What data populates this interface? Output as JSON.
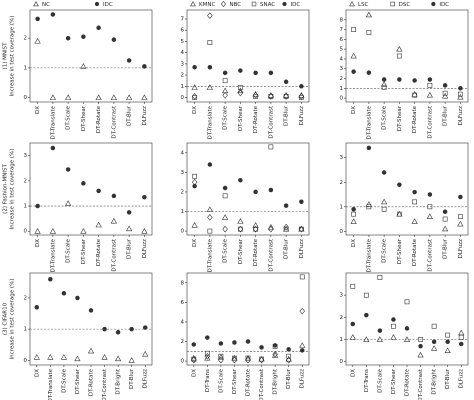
{
  "chart_data": [
    {
      "type": "scatter",
      "panel_label": "(1) MNIST",
      "ylabel": "Increase in test coverage (%)",
      "legend": "top",
      "categories": [
        "DX",
        "DT-Translate",
        "DT-Scale",
        "DT-Shear",
        "DT-Rotate",
        "DT-Contrast",
        "DT-Blur",
        "DLFuzz"
      ],
      "series": [
        {
          "name": "NC",
          "marker": "triangle",
          "color": "#333333",
          "values": [
            1.9,
            0,
            0,
            1.05,
            0,
            0,
            0,
            0
          ]
        },
        {
          "name": "IDC",
          "marker": "circle",
          "color": "#333333",
          "values": [
            2.65,
            2.8,
            2.0,
            2.05,
            2.35,
            1.95,
            1.25,
            1.05
          ]
        }
      ],
      "ylim": [
        -0.15,
        2.95
      ],
      "yticks": [
        0,
        1,
        2
      ],
      "hline": 1
    },
    {
      "type": "scatter",
      "legend": "top",
      "categories": [
        "DX",
        "DT-Translate",
        "DT-Scale",
        "DT-Shear",
        "DT-Rotate",
        "DT-Contrast",
        "DT-Blur",
        "DLFuzz"
      ],
      "series": [
        {
          "name": "KMNC",
          "marker": "triangle",
          "color": "#333333",
          "values": [
            0.9,
            0.9,
            0.6,
            0.6,
            0.3,
            0.2,
            0.2,
            0.2
          ]
        },
        {
          "name": "NBC",
          "marker": "diamond",
          "color": "#333333",
          "values": [
            0.1,
            7.3,
            0.2,
            0.4,
            0.2,
            0.1,
            0.1,
            0.1
          ]
        },
        {
          "name": "SNAC",
          "marker": "square",
          "color": "#333333",
          "values": [
            0,
            4.9,
            1.5,
            0.9,
            0.1,
            0.1,
            0.1,
            0
          ]
        },
        {
          "name": "IDC",
          "marker": "circle",
          "color": "#333333",
          "values": [
            2.7,
            2.7,
            2.2,
            2.4,
            2.2,
            2.2,
            1.4,
            1.0
          ]
        }
      ],
      "ylim": [
        -0.4,
        7.8
      ],
      "yticks": [
        0,
        1,
        2,
        3,
        4,
        5,
        6,
        7
      ],
      "hline": 1
    },
    {
      "type": "scatter",
      "legend": "top",
      "categories": [
        "DX",
        "DT-Translate",
        "DT-Scale",
        "DT-Shear",
        "DT-Rotate",
        "DT-Contrast",
        "DT-Blur",
        "DLFuzz"
      ],
      "series": [
        {
          "name": "LSC",
          "marker": "triangle",
          "color": "#333333",
          "values": [
            4.3,
            8.5,
            1.4,
            5.0,
            0.4,
            0.3,
            0.2,
            0.1
          ]
        },
        {
          "name": "DSC",
          "marker": "square",
          "color": "#333333",
          "values": [
            7.0,
            6.7,
            1.1,
            4.3,
            0.3,
            1.3,
            0.5,
            0.4
          ]
        },
        {
          "name": "IDC",
          "marker": "circle",
          "color": "#333333",
          "values": [
            2.7,
            2.6,
            1.9,
            1.9,
            1.8,
            1.9,
            1.3,
            1.0
          ]
        }
      ],
      "ylim": [
        -0.4,
        9.0
      ],
      "yticks": [
        0,
        1,
        2,
        3,
        4,
        5,
        6,
        7,
        8
      ],
      "hline": 1
    },
    {
      "type": "scatter",
      "panel_label": "(2) Fashion-MNIST",
      "ylabel": "Increase in test coverage (%)",
      "categories": [
        "DX",
        "DT-Translate",
        "DT-Scale",
        "DT-Shear",
        "DT-Rotate",
        "DT-Contrast",
        "DT-Blur",
        "DLFuzz"
      ],
      "series": [
        {
          "name": "NC",
          "marker": "triangle",
          "color": "#333333",
          "values": [
            0,
            0,
            1.1,
            0,
            0.25,
            0.4,
            0.1,
            0
          ]
        },
        {
          "name": "IDC",
          "marker": "circle",
          "color": "#333333",
          "values": [
            1.0,
            3.3,
            2.45,
            1.9,
            1.6,
            1.4,
            0.75,
            1.35
          ]
        }
      ],
      "ylim": [
        -0.15,
        3.5
      ],
      "yticks": [
        0,
        1,
        2,
        3
      ],
      "hline": 1
    },
    {
      "type": "scatter",
      "categories": [
        "DX",
        "DT-Translate",
        "DT-Scale",
        "DT-Shear",
        "DT-Rotate",
        "DT-Contrast",
        "DT-Blur",
        "DLFuzz"
      ],
      "series": [
        {
          "name": "KMNC",
          "marker": "triangle",
          "color": "#333333",
          "values": [
            0.3,
            1.1,
            0.7,
            0.5,
            0.3,
            0.2,
            0.1,
            0.1
          ]
        },
        {
          "name": "NBC",
          "marker": "diamond",
          "color": "#333333",
          "values": [
            2.5,
            0.7,
            0.1,
            0.1,
            0.1,
            0.1,
            0.2,
            0.1
          ]
        },
        {
          "name": "SNAC",
          "marker": "square",
          "color": "#333333",
          "values": [
            2.8,
            0,
            1.8,
            0.1,
            0.1,
            4.3,
            0.1,
            0.1
          ]
        },
        {
          "name": "IDC",
          "marker": "circle",
          "color": "#333333",
          "values": [
            2.3,
            3.4,
            2.2,
            2.6,
            2.0,
            2.1,
            1.3,
            1.5
          ]
        }
      ],
      "ylim": [
        -0.2,
        4.5
      ],
      "yticks": [
        0,
        1,
        2,
        3,
        4
      ],
      "hline": 1
    },
    {
      "type": "scatter",
      "categories": [
        "DX",
        "DT-Translate",
        "DT-Scale",
        "DT-Shear",
        "DT-Rotate",
        "DT-Contrast",
        "DT-Blur",
        "DLFuzz"
      ],
      "series": [
        {
          "name": "LSC",
          "marker": "triangle",
          "color": "#333333",
          "values": [
            0.4,
            1.1,
            1.2,
            0.7,
            0.4,
            0.6,
            0.1,
            0.3
          ]
        },
        {
          "name": "DSC",
          "marker": "square",
          "color": "#333333",
          "values": [
            0.7,
            1.0,
            0.9,
            0.7,
            1.2,
            1.0,
            0.5,
            0.6
          ]
        },
        {
          "name": "IDC",
          "marker": "circle",
          "color": "#333333",
          "values": [
            0.9,
            3.4,
            2.4,
            1.9,
            1.6,
            1.5,
            0.8,
            1.4
          ]
        }
      ],
      "ylim": [
        -0.15,
        3.6
      ],
      "yticks": [
        0,
        1,
        2,
        3
      ],
      "hline": 1
    },
    {
      "type": "scatter",
      "panel_label": "(3) CIFAR10",
      "ylabel": "Increase in test coverage (%)",
      "categories": [
        "DX",
        "DT-Translate",
        "DT-Scale",
        "DT-Shear",
        "DT-Rotate",
        "DT-Contrast",
        "DT-Bright",
        "DT-Blur",
        "DLFuzz"
      ],
      "series": [
        {
          "name": "NC",
          "marker": "triangle",
          "color": "#333333",
          "values": [
            0.1,
            0.1,
            0.1,
            0.05,
            0.3,
            0.1,
            0.05,
            0.0,
            0.2
          ]
        },
        {
          "name": "IDC",
          "marker": "circle",
          "color": "#333333",
          "values": [
            1.7,
            2.6,
            2.15,
            2.0,
            1.6,
            1.0,
            0.9,
            1.0,
            1.05
          ]
        }
      ],
      "ylim": [
        -0.15,
        2.8
      ],
      "yticks": [
        0,
        1,
        2
      ],
      "hline": 1
    },
    {
      "type": "scatter",
      "categories": [
        "DX",
        "DT-Trans",
        "DT-Scale",
        "DT-Shear",
        "DT-Rotate",
        "DT-Contrast",
        "DT-Bright",
        "DT-Blur",
        "DLFuzz"
      ],
      "series": [
        {
          "name": "KMNC",
          "marker": "triangle",
          "color": "#333333",
          "values": [
            0.3,
            0.3,
            0.4,
            0.3,
            0.3,
            0.2,
            0.6,
            0.2,
            1.6
          ]
        },
        {
          "name": "NBC",
          "marker": "diamond",
          "color": "#333333",
          "values": [
            0.1,
            0.5,
            0.1,
            0.1,
            0.1,
            0.1,
            0.7,
            0.1,
            5.1
          ]
        },
        {
          "name": "SNAC",
          "marker": "square",
          "color": "#333333",
          "values": [
            0.2,
            0.8,
            0.5,
            0.3,
            0.3,
            0.2,
            1.5,
            0.5,
            8.6
          ]
        },
        {
          "name": "IDC",
          "marker": "circle",
          "color": "#333333",
          "values": [
            1.7,
            2.4,
            1.8,
            1.9,
            2.0,
            1.4,
            1.6,
            1.2,
            1.1
          ]
        }
      ],
      "ylim": [
        -0.4,
        9.0
      ],
      "yticks": [
        0,
        2,
        4,
        6,
        8
      ],
      "hline": 1
    },
    {
      "type": "scatter",
      "categories": [
        "DX",
        "DT-Trans",
        "DT-Scale",
        "DT-Shear",
        "DT-Rotate",
        "DT-Contrast",
        "DT-Bright",
        "DT-Blur",
        "DLFuzz"
      ],
      "series": [
        {
          "name": "LSC",
          "marker": "triangle",
          "color": "#333333",
          "values": [
            1.1,
            1.0,
            1.0,
            1.1,
            1.0,
            0.3,
            0.6,
            0.5,
            1.3
          ]
        },
        {
          "name": "DSC",
          "marker": "square",
          "color": "#333333",
          "values": [
            3.4,
            3.0,
            3.8,
            1.6,
            2.7,
            1.0,
            1.6,
            1.2,
            1.1
          ]
        },
        {
          "name": "IDC",
          "marker": "circle",
          "color": "#333333",
          "values": [
            1.7,
            2.1,
            1.4,
            1.9,
            1.5,
            0.7,
            0.9,
            0.9,
            0.8
          ]
        }
      ],
      "ylim": [
        -0.15,
        4.0
      ],
      "yticks": [
        0,
        1,
        2,
        3
      ],
      "hline": 1
    }
  ]
}
